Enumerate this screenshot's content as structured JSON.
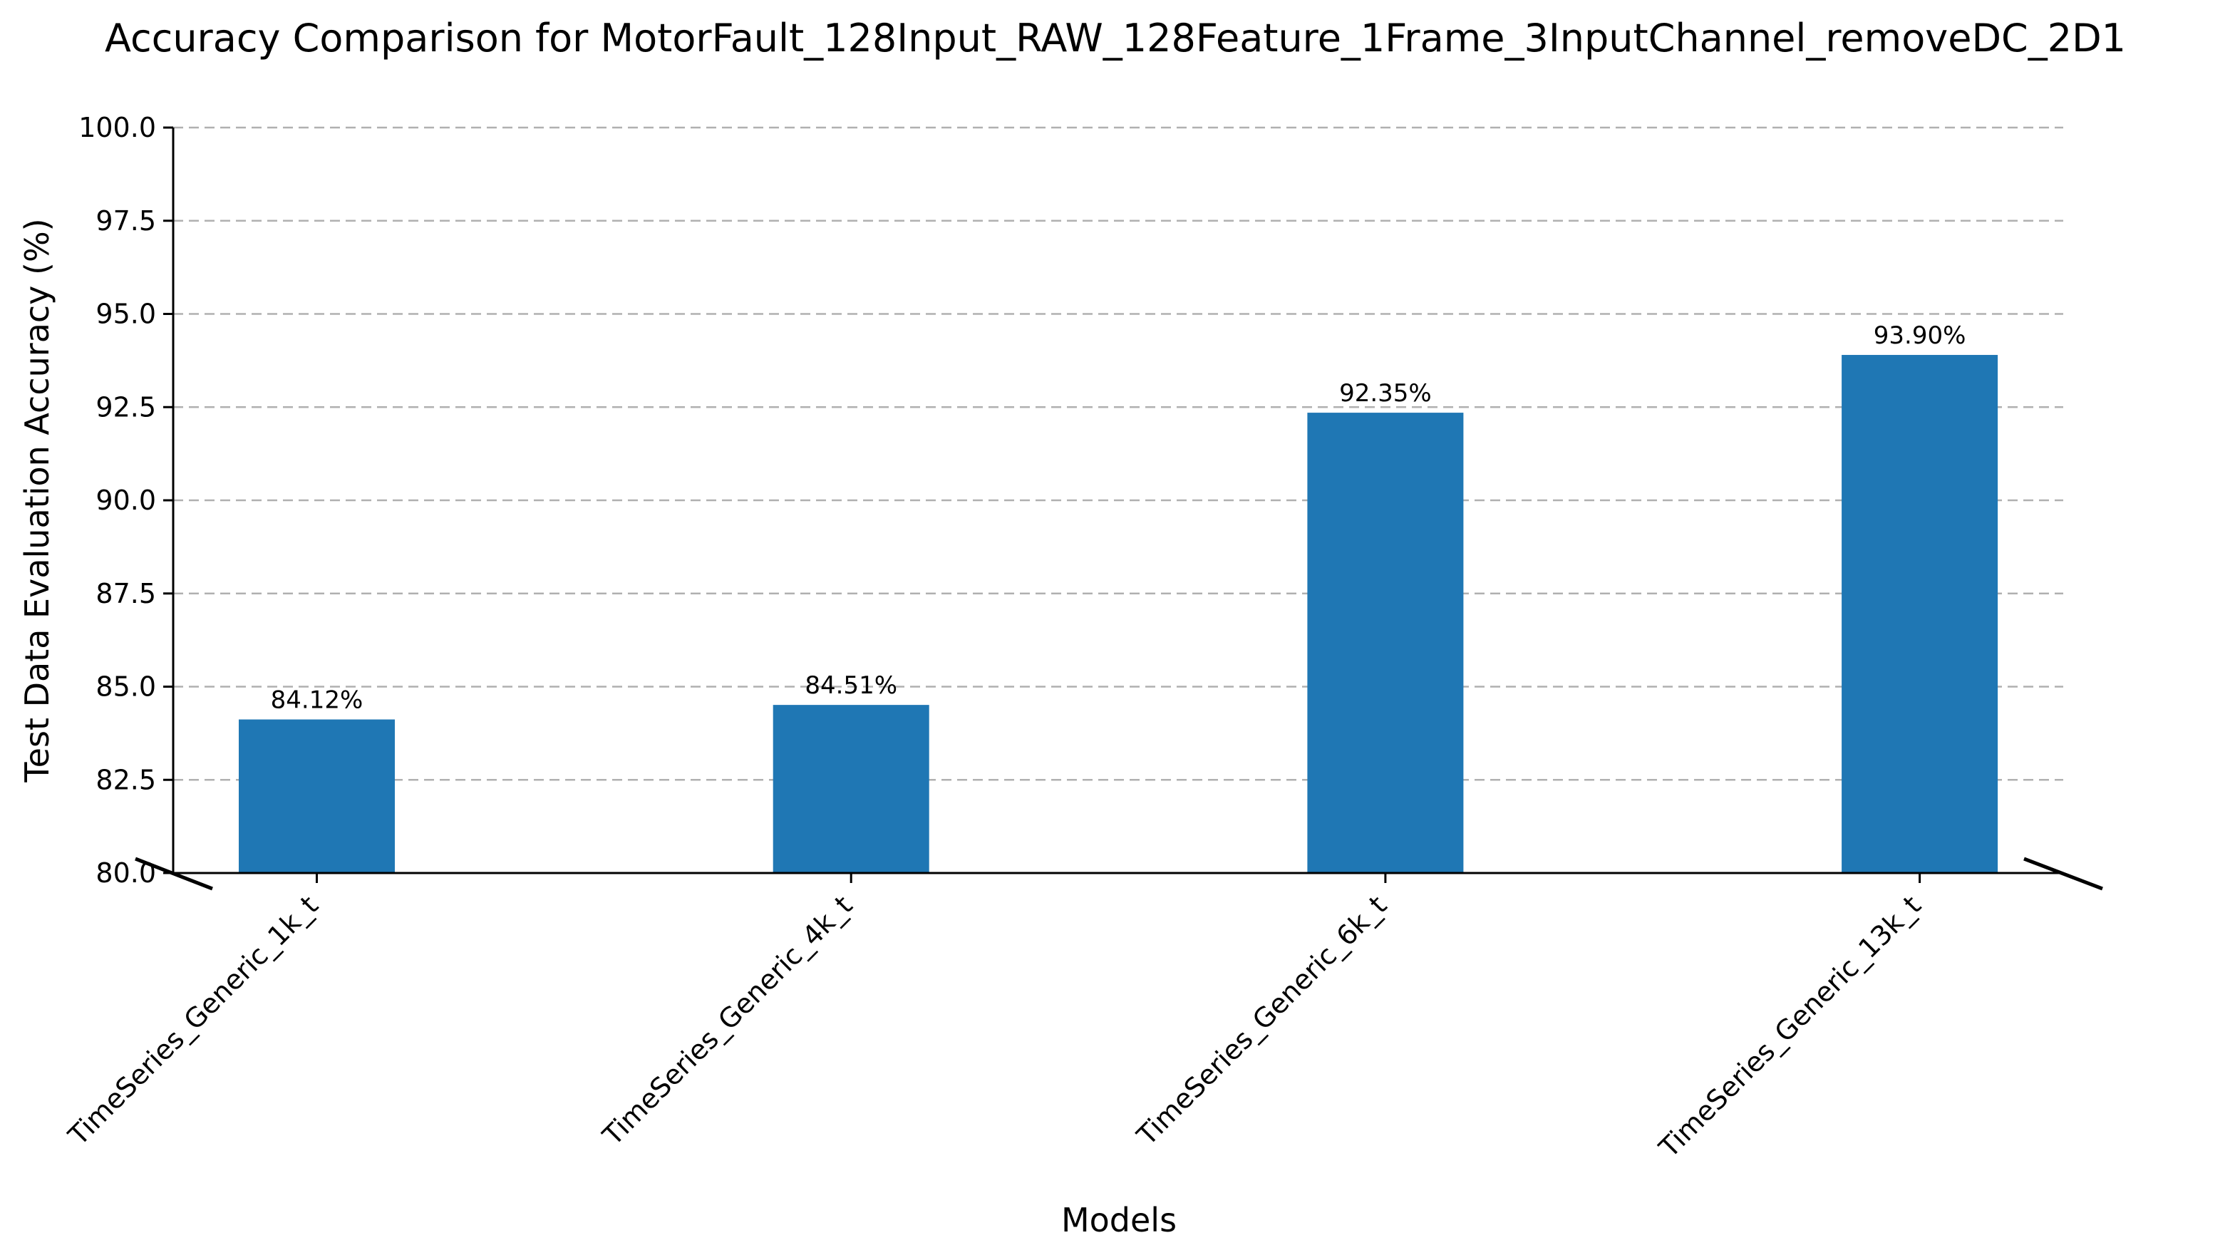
{
  "chart_data": {
    "type": "bar",
    "title": "Accuracy Comparison for MotorFault_128Input_RAW_128Feature_1Frame_3InputChannel_removeDC_2D1",
    "xlabel": "Models",
    "ylabel": "Test Data Evaluation Accuracy (%)",
    "categories": [
      "TimeSeries_Generic_1k_t",
      "TimeSeries_Generic_4k_t",
      "TimeSeries_Generic_6k_t",
      "TimeSeries_Generic_13k_t"
    ],
    "values": [
      84.12,
      84.51,
      92.35,
      93.9
    ],
    "data_labels": [
      "84.12%",
      "84.51%",
      "92.35%",
      "93.90%"
    ],
    "ylim": [
      80.0,
      100.0
    ],
    "yticks": [
      80.0,
      82.5,
      85.0,
      87.5,
      90.0,
      92.5,
      95.0,
      97.5,
      100.0
    ],
    "ytick_labels": [
      "80.0",
      "82.5",
      "85.0",
      "87.5",
      "90.0",
      "92.5",
      "95.0",
      "97.5",
      "100.0"
    ],
    "grid": "y-dashed",
    "axis_break": true,
    "bar_color": "#1f77b4"
  }
}
